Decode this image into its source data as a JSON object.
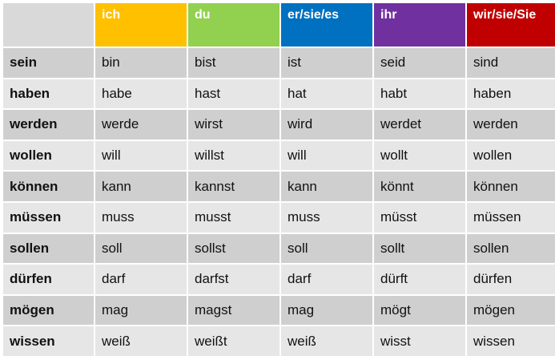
{
  "table": {
    "headers": [
      {
        "label": "ich",
        "color": "#ffc000"
      },
      {
        "label": "du",
        "color": "#92d050"
      },
      {
        "label": "er/sie/es",
        "color": "#0070c0"
      },
      {
        "label": "ihr",
        "color": "#7030a0"
      },
      {
        "label": "wir/sie/Sie",
        "color": "#c00000"
      }
    ],
    "rows": [
      {
        "verb": "sein",
        "forms": [
          "bin",
          "bist",
          "ist",
          "seid",
          "sind"
        ]
      },
      {
        "verb": "haben",
        "forms": [
          "habe",
          "hast",
          "hat",
          "habt",
          "haben"
        ]
      },
      {
        "verb": "werden",
        "forms": [
          "werde",
          "wirst",
          "wird",
          "werdet",
          "werden"
        ]
      },
      {
        "verb": "wollen",
        "forms": [
          "will",
          "willst",
          "will",
          "wollt",
          "wollen"
        ]
      },
      {
        "verb": "können",
        "forms": [
          "kann",
          "kannst",
          "kann",
          "könnt",
          "können"
        ]
      },
      {
        "verb": "müssen",
        "forms": [
          "muss",
          "musst",
          "muss",
          "müsst",
          "müssen"
        ]
      },
      {
        "verb": "sollen",
        "forms": [
          "soll",
          "sollst",
          "soll",
          "sollt",
          "sollen"
        ]
      },
      {
        "verb": "dürfen",
        "forms": [
          "darf",
          "darfst",
          "darf",
          "dürft",
          "dürfen"
        ]
      },
      {
        "verb": "mögen",
        "forms": [
          "mag",
          "magst",
          "mag",
          "mögt",
          "mögen"
        ]
      },
      {
        "verb": "wissen",
        "forms": [
          "weiß",
          "weißt",
          "weiß",
          "wisst",
          "wissen"
        ]
      }
    ]
  }
}
